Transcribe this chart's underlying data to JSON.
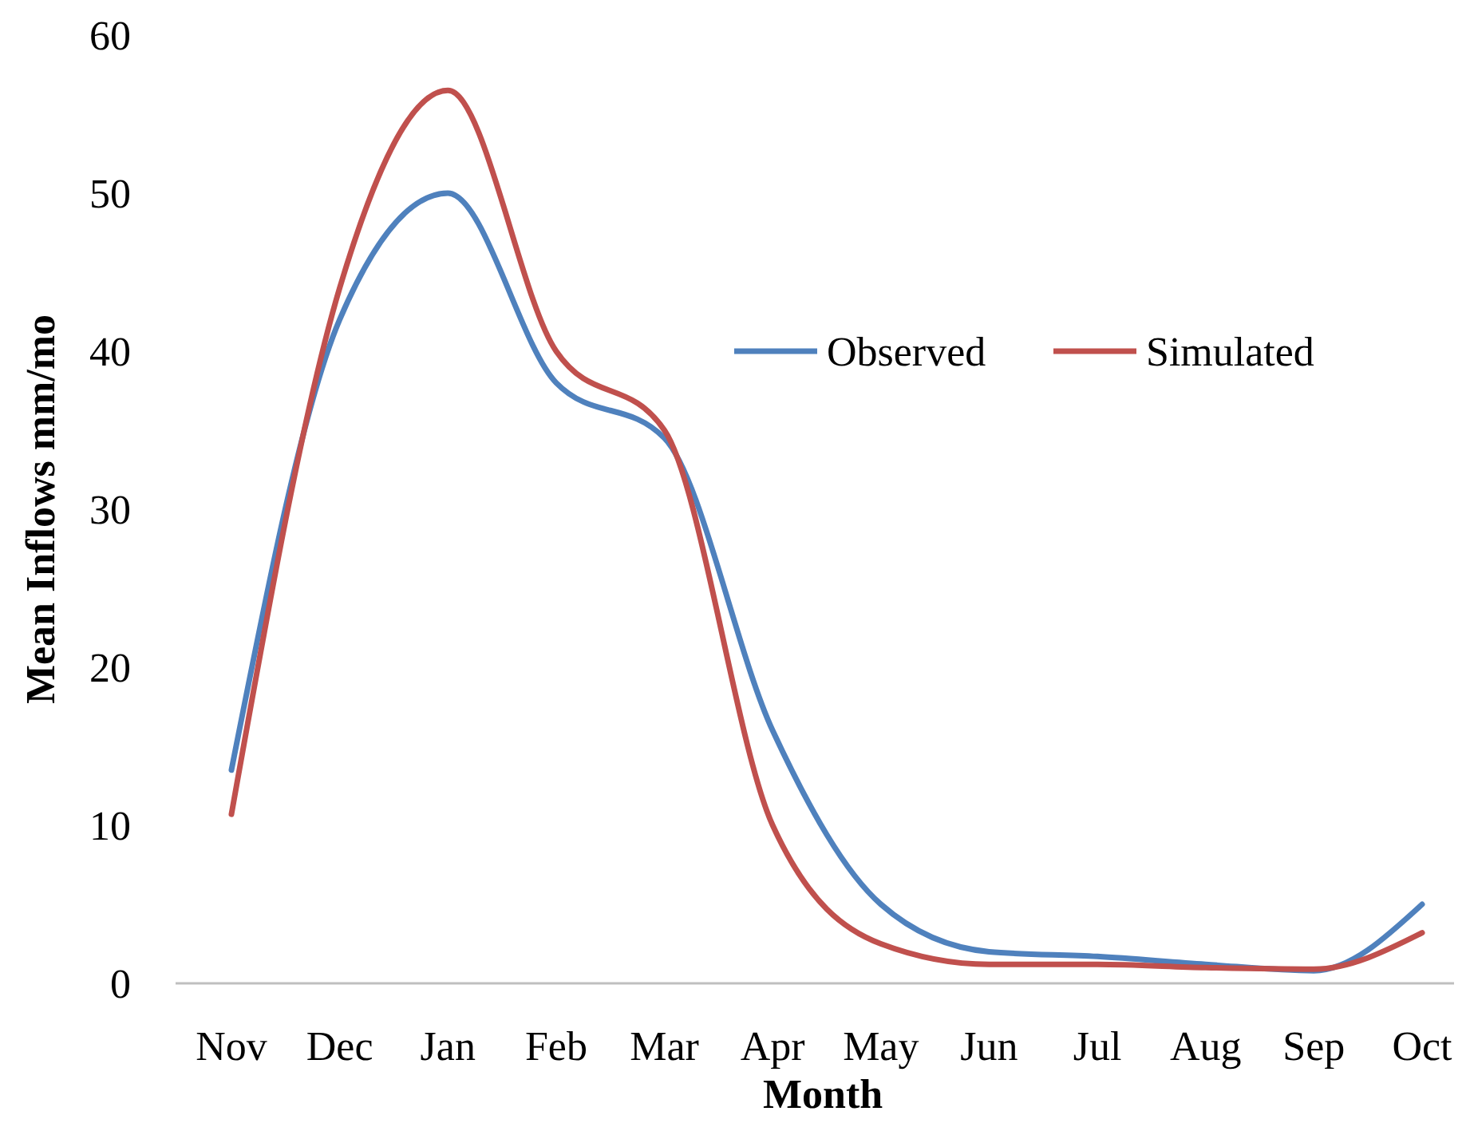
{
  "chart_data": {
    "type": "line",
    "xlabel": "Month",
    "ylabel": "Mean Inflows mm/mo",
    "categories": [
      "Nov",
      "Dec",
      "Jan",
      "Feb",
      "Mar",
      "Apr",
      "May",
      "Jun",
      "Jul",
      "Aug",
      "Sep",
      "Oct"
    ],
    "series": [
      {
        "name": "Observed",
        "color": "#4f81bd",
        "values": [
          13.5,
          42,
          50,
          38,
          34.5,
          16,
          5,
          2,
          1.7,
          1.2,
          0.8,
          5
        ]
      },
      {
        "name": "Simulated",
        "color": "#c0504d",
        "values": [
          10.7,
          44,
          56.5,
          40,
          35,
          10,
          2.5,
          1.2,
          1.2,
          1,
          0.9,
          3.2
        ]
      }
    ],
    "ylim": [
      0,
      60
    ],
    "yticks": [
      0,
      10,
      20,
      30,
      40,
      50,
      60
    ],
    "grid": false,
    "legend": "right",
    "marker": "none",
    "line_style": "solid"
  }
}
